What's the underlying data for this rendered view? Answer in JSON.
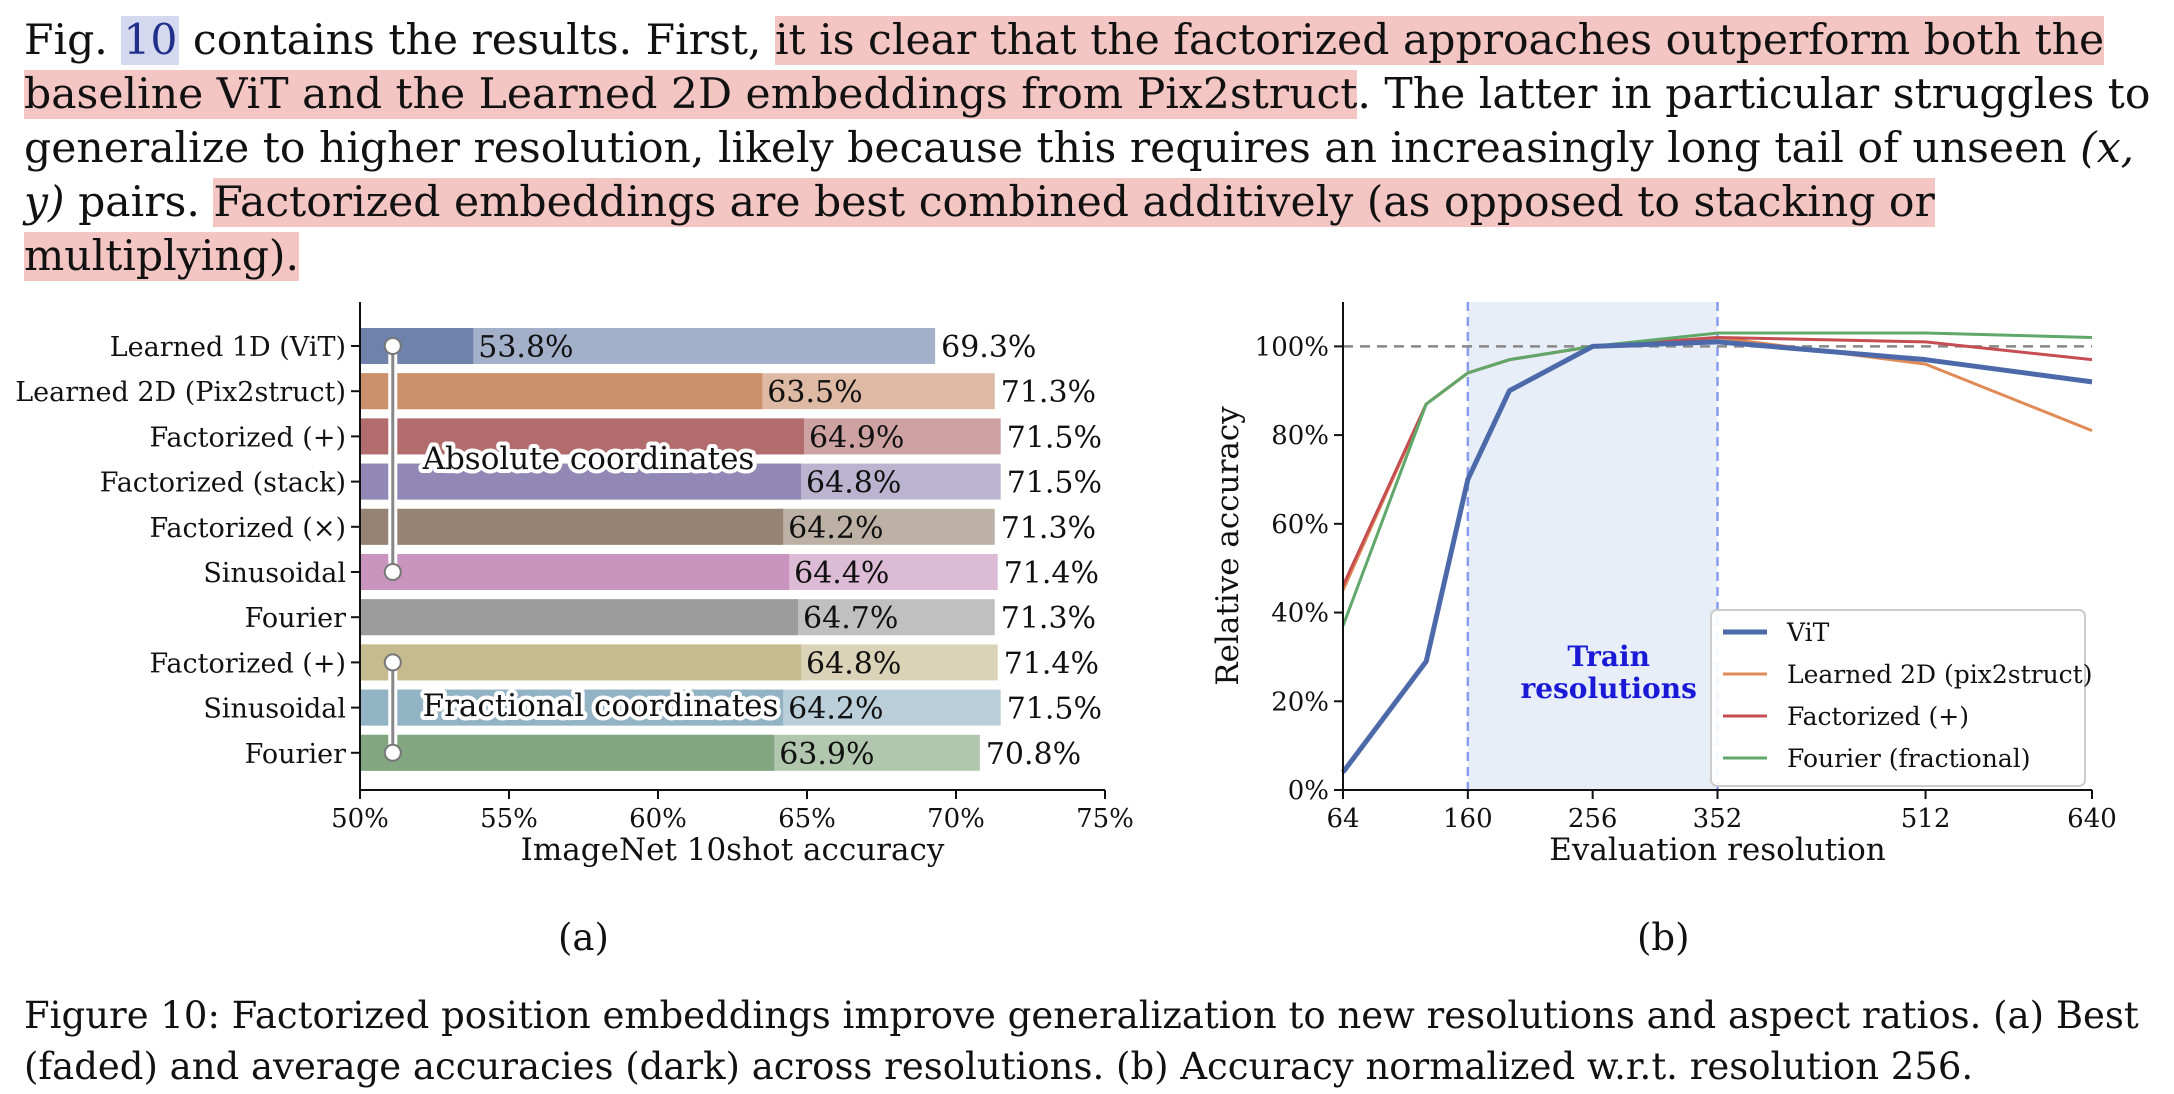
{
  "paragraph": {
    "p1": "Fig. ",
    "ref": "10",
    "p2": " contains the results. First, ",
    "h1": "it is clear that the factorized approaches outperform both the baseline ViT and the Learned 2D embeddings from Pix2struct",
    "p3": ". The latter in particular struggles to generalize to higher resolution, likely because this requires an increasingly long tail of unseen ",
    "math": "(x, y)",
    "p4": " pairs. ",
    "h2": "Factorized embeddings are best combined additively (as opposed to stacking or multiplying)",
    "p5": "."
  },
  "sublabels": {
    "a": "(a)",
    "b": "(b)"
  },
  "caption": {
    "label": "Figure 10:",
    "text": " Factorized position embeddings improve generalization to new resolutions and aspect ratios. (a) Best (faded) and average accuracies (dark) across resolutions. (b) Accuracy normalized w.r.t. resolution 256."
  },
  "chart_data": [
    {
      "type": "bar",
      "xlabel": "ImageNet 10shot accuracy",
      "xlim": [
        50,
        75
      ],
      "xticks": [
        "50%",
        "55%",
        "60%",
        "65%",
        "70%",
        "75%"
      ],
      "categories": [
        "Learned 1D (ViT)",
        "Learned 2D (Pix2struct)",
        "Factorized (+)",
        "Factorized (stack)",
        "Factorized (×)",
        "Sinusoidal",
        "Fourier",
        "Factorized (+)",
        "Sinusoidal",
        "Fourier"
      ],
      "series": [
        {
          "name": "average",
          "values": [
            53.8,
            63.5,
            64.9,
            64.8,
            64.2,
            64.4,
            64.7,
            64.8,
            64.2,
            63.9
          ]
        },
        {
          "name": "best",
          "values": [
            69.3,
            71.3,
            71.5,
            71.5,
            71.3,
            71.4,
            71.3,
            71.4,
            71.5,
            70.8
          ]
        }
      ],
      "avg_labels": [
        "53.8%",
        "63.5%",
        "64.9%",
        "64.8%",
        "64.2%",
        "64.4%",
        "64.7%",
        "64.8%",
        "64.2%",
        "63.9%"
      ],
      "best_labels": [
        "69.3%",
        "71.3%",
        "71.5%",
        "71.5%",
        "71.3%",
        "71.4%",
        "71.3%",
        "71.4%",
        "71.5%",
        "70.8%"
      ],
      "colors": [
        "#6b7fa9",
        "#c98e6a",
        "#b0696b",
        "#8f86b4",
        "#958170",
        "#c792bd",
        "#9a9a9a",
        "#c5b88c",
        "#8fb1c2",
        "#7fa57d"
      ],
      "annotations": [
        "Absolute coordinates",
        "Fractional coordinates"
      ]
    },
    {
      "type": "line",
      "xlabel": "Evaluation resolution",
      "ylabel": "Relative accuracy",
      "xticks": [
        64,
        160,
        256,
        352,
        512,
        640
      ],
      "yticks": [
        "0%",
        "20%",
        "40%",
        "60%",
        "80%",
        "100%"
      ],
      "xlim": [
        64,
        640
      ],
      "ylim": [
        0,
        1.1
      ],
      "reference_line": 1.0,
      "shaded_region": {
        "x": [
          160,
          352
        ],
        "label_line1": "Train",
        "label_line2": "resolutions"
      },
      "legend_position": "lower-right",
      "series": [
        {
          "name": "ViT",
          "color": "#4c6aaa",
          "x": [
            64,
            128,
            160,
            192,
            256,
            352,
            512,
            640
          ],
          "y": [
            0.04,
            0.29,
            0.7,
            0.9,
            1.0,
            1.01,
            0.97,
            0.92
          ]
        },
        {
          "name": "Learned 2D (pix2struct)",
          "color": "#e08a55",
          "x": [
            64,
            128,
            160,
            192,
            256,
            352,
            512,
            640
          ],
          "y": [
            0.45,
            0.87,
            0.94,
            0.97,
            1.0,
            1.02,
            0.96,
            0.81
          ]
        },
        {
          "name": "Factorized (+)",
          "color": "#c44e52",
          "x": [
            64,
            128,
            160,
            192,
            256,
            352,
            512,
            640
          ],
          "y": [
            0.46,
            0.87,
            0.94,
            0.97,
            1.0,
            1.02,
            1.01,
            0.97
          ]
        },
        {
          "name": "Fourier (fractional)",
          "color": "#5fa86a",
          "x": [
            64,
            128,
            160,
            192,
            256,
            352,
            512,
            640
          ],
          "y": [
            0.37,
            0.87,
            0.94,
            0.97,
            1.0,
            1.03,
            1.03,
            1.02
          ]
        }
      ]
    }
  ]
}
